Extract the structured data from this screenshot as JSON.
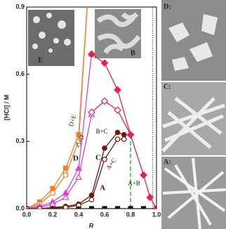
{
  "chart_data": {
    "type": "line",
    "x_label": "R",
    "y_label": "[HCl] / M",
    "xlim": [
      0,
      1
    ],
    "ylim": [
      0,
      0.9
    ],
    "xticks": [
      {
        "value": 0,
        "label": "0.0"
      },
      0.2,
      0.4,
      0.6,
      0.8,
      {
        "value": 1,
        "label": "1.0"
      }
    ],
    "yticks": [
      {
        "value": 0,
        "label": "0.0"
      },
      0.3,
      0.6,
      0.9
    ],
    "series": [
      {
        "color": "#111111",
        "marker": "square",
        "filled": true,
        "x": [
          0,
          0.1,
          0.2,
          0.3,
          0.4,
          0.5,
          0.6,
          0.7,
          0.8,
          0.9,
          1.0
        ],
        "values": [
          0,
          0,
          0,
          0,
          0,
          0,
          0,
          0,
          0,
          0,
          0
        ]
      },
      {
        "color": "#f08030",
        "marker": "square",
        "filled": true,
        "x": [
          0,
          0.1,
          0.2,
          0.3,
          0.4,
          0.5
        ],
        "values": [
          0,
          0.03,
          0.09,
          0.18,
          0.33,
          1.2
        ]
      },
      {
        "color": "#f08030",
        "marker": "square",
        "filled": false,
        "x": [
          0,
          0.1,
          0.2,
          0.3,
          0.4,
          0.5
        ],
        "values": [
          0,
          0.02,
          0.07,
          0.15,
          0.3,
          1.2
        ]
      },
      {
        "color": "#e040d0",
        "marker": "triangle",
        "filled": true,
        "x": [
          0,
          0.1,
          0.2,
          0.3,
          0.4,
          0.5
        ],
        "values": [
          0,
          0.01,
          0.03,
          0.07,
          0.18,
          0.69
        ]
      },
      {
        "color": "#e040d0",
        "marker": "triangle",
        "filled": false,
        "x": [
          0,
          0.1,
          0.2,
          0.3,
          0.4,
          0.5
        ],
        "values": [
          0,
          0.005,
          0.02,
          0.05,
          0.14,
          0.42
        ]
      },
      {
        "color": "#e8204a",
        "marker": "diamond",
        "filled": false,
        "x": [
          0.5,
          0.6,
          0.7,
          0.8
        ],
        "values": [
          0.43,
          0.48,
          0.44,
          0.33
        ]
      },
      {
        "color": "#e8204a",
        "marker": "diamond",
        "filled": true,
        "x": [
          0.5,
          0.6,
          0.7,
          0.8,
          0.9,
          0.95,
          1.0
        ],
        "values": [
          0.69,
          0.65,
          0.53,
          0.33,
          0.15,
          0.05,
          0
        ]
      },
      {
        "color": "#6a1a10",
        "marker": "circle",
        "filled": true,
        "x": [
          0,
          0.1,
          0.3,
          0.4,
          0.5,
          0.6,
          0.7,
          0.75
        ],
        "values": [
          0,
          0,
          0.01,
          0.02,
          0.06,
          0.27,
          0.34,
          0.33
        ]
      },
      {
        "color": "#6a1a10",
        "marker": "circle",
        "filled": false,
        "x": [
          0,
          0.1,
          0.3,
          0.4,
          0.5,
          0.6,
          0.7,
          0.75
        ],
        "values": [
          0,
          0,
          0.005,
          0.015,
          0.04,
          0.22,
          0.31,
          0.31
        ]
      }
    ],
    "boundaries": [
      {
        "x": 0.8,
        "values": [
          0,
          0.33
        ],
        "color": "#60d060"
      },
      {
        "x": 0.97,
        "values": [
          0,
          0.9
        ],
        "color": "#444444"
      }
    ],
    "annotations": [
      "A",
      "B+C",
      "C",
      "D",
      "C+D",
      "D+E",
      "A+C",
      "A+B"
    ],
    "insets": [
      "E",
      "B"
    ],
    "panels": [
      "D:",
      "C:",
      "A:"
    ]
  }
}
